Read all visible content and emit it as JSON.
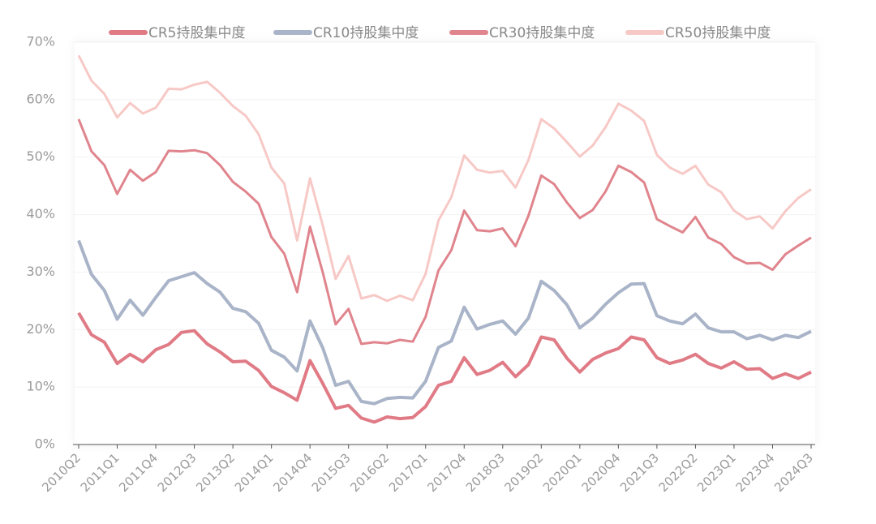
{
  "chart_data": {
    "type": "line",
    "categories": [
      "2010Q2",
      null,
      null,
      "2011Q1",
      null,
      null,
      "2011Q4",
      null,
      null,
      "2012Q3",
      null,
      null,
      "2013Q2",
      null,
      null,
      "2014Q1",
      null,
      null,
      "2014Q4",
      null,
      null,
      "2015Q3",
      null,
      null,
      "2016Q2",
      null,
      null,
      "2017Q1",
      null,
      null,
      "2017Q4",
      null,
      null,
      "2018Q3",
      null,
      null,
      "2019Q2",
      null,
      null,
      "2020Q1",
      null,
      null,
      "2020Q4",
      null,
      null,
      "2021Q3",
      null,
      null,
      "2022Q2",
      null,
      null,
      "2023Q1",
      null,
      null,
      "2023Q4",
      null,
      null,
      "2024Q3"
    ],
    "series": [
      {
        "name": "CR5持股集中度",
        "color": "#e07b86",
        "width": 4,
        "values": [
          22.9,
          19.1,
          17.8,
          14.1,
          15.7,
          14.4,
          16.5,
          17.4,
          19.5,
          19.8,
          17.5,
          16.1,
          14.4,
          14.5,
          12.9,
          10.1,
          9.0,
          7.7,
          14.6,
          10.6,
          6.3,
          6.8,
          4.6,
          3.9,
          4.8,
          4.5,
          4.7,
          6.6,
          10.3,
          11.0,
          15.1,
          12.2,
          12.9,
          14.3,
          11.8,
          13.9,
          18.7,
          18.2,
          15.0,
          12.6,
          14.8,
          15.9,
          16.7,
          18.7,
          18.2,
          15.1,
          14.1,
          14.7,
          15.7,
          14.1,
          13.3,
          14.4,
          13.1,
          13.2,
          11.5,
          12.3,
          11.5,
          12.6
        ]
      },
      {
        "name": "CR10持股集中度",
        "color": "#a9b4c8",
        "width": 4,
        "values": [
          35.5,
          29.6,
          26.8,
          21.8,
          25.1,
          22.5,
          25.6,
          28.5,
          29.2,
          29.9,
          28.0,
          26.5,
          23.7,
          23.1,
          21.1,
          16.4,
          15.2,
          12.8,
          21.5,
          16.8,
          10.3,
          11.0,
          7.5,
          7.1,
          8.0,
          8.2,
          8.1,
          11.0,
          16.9,
          18.0,
          23.9,
          20.1,
          20.9,
          21.5,
          19.2,
          22.0,
          28.4,
          26.8,
          24.3,
          20.3,
          22.0,
          24.4,
          26.4,
          27.9,
          28.0,
          22.4,
          21.5,
          21.0,
          22.7,
          20.3,
          19.6,
          19.6,
          18.4,
          19.0,
          18.2,
          19.0,
          18.6,
          19.7
        ]
      },
      {
        "name": "CR30持股集中度",
        "color": "#e0848d",
        "width": 3,
        "values": [
          56.6,
          51.0,
          48.6,
          43.6,
          47.8,
          45.9,
          47.4,
          51.1,
          51.0,
          51.2,
          50.7,
          48.6,
          45.7,
          44.0,
          41.9,
          36.1,
          33.2,
          26.5,
          37.9,
          29.9,
          20.9,
          23.6,
          17.5,
          17.8,
          17.6,
          18.2,
          17.9,
          22.2,
          30.3,
          33.8,
          40.7,
          37.3,
          37.1,
          37.6,
          34.5,
          39.8,
          46.8,
          45.3,
          42.1,
          39.4,
          40.8,
          44.0,
          48.5,
          47.4,
          45.6,
          39.2,
          38.0,
          36.9,
          39.6,
          36.0,
          34.9,
          32.6,
          31.5,
          31.6,
          30.4,
          33.1,
          34.6,
          36.0
        ]
      },
      {
        "name": "CR50持股集中度",
        "color": "#f7c9c6",
        "width": 3,
        "values": [
          67.7,
          63.3,
          61.0,
          56.9,
          59.4,
          57.6,
          58.6,
          61.9,
          61.8,
          62.6,
          63.1,
          61.2,
          58.9,
          57.2,
          54.0,
          48.2,
          45.4,
          35.5,
          46.3,
          38.1,
          28.8,
          32.8,
          25.4,
          26.0,
          25.0,
          25.9,
          25.1,
          29.7,
          39.0,
          43.0,
          50.3,
          47.8,
          47.3,
          47.6,
          44.7,
          49.5,
          56.6,
          55.0,
          52.6,
          50.1,
          52.0,
          55.2,
          59.3,
          58.1,
          56.3,
          50.4,
          48.2,
          47.1,
          48.5,
          45.2,
          43.9,
          40.7,
          39.2,
          39.7,
          37.6,
          40.6,
          42.9,
          44.4
        ]
      }
    ],
    "ylim": [
      0,
      70
    ],
    "yticks": [
      {
        "value": 0,
        "label": "0%"
      },
      {
        "value": 10,
        "label": "10%"
      },
      {
        "value": 20,
        "label": "20%"
      },
      {
        "value": 30,
        "label": "30%"
      },
      {
        "value": 40,
        "label": "40%"
      },
      {
        "value": 50,
        "label": "50%"
      },
      {
        "value": 60,
        "label": "60%"
      },
      {
        "value": 70,
        "label": "70%"
      }
    ],
    "grid": true,
    "legend": "top"
  }
}
